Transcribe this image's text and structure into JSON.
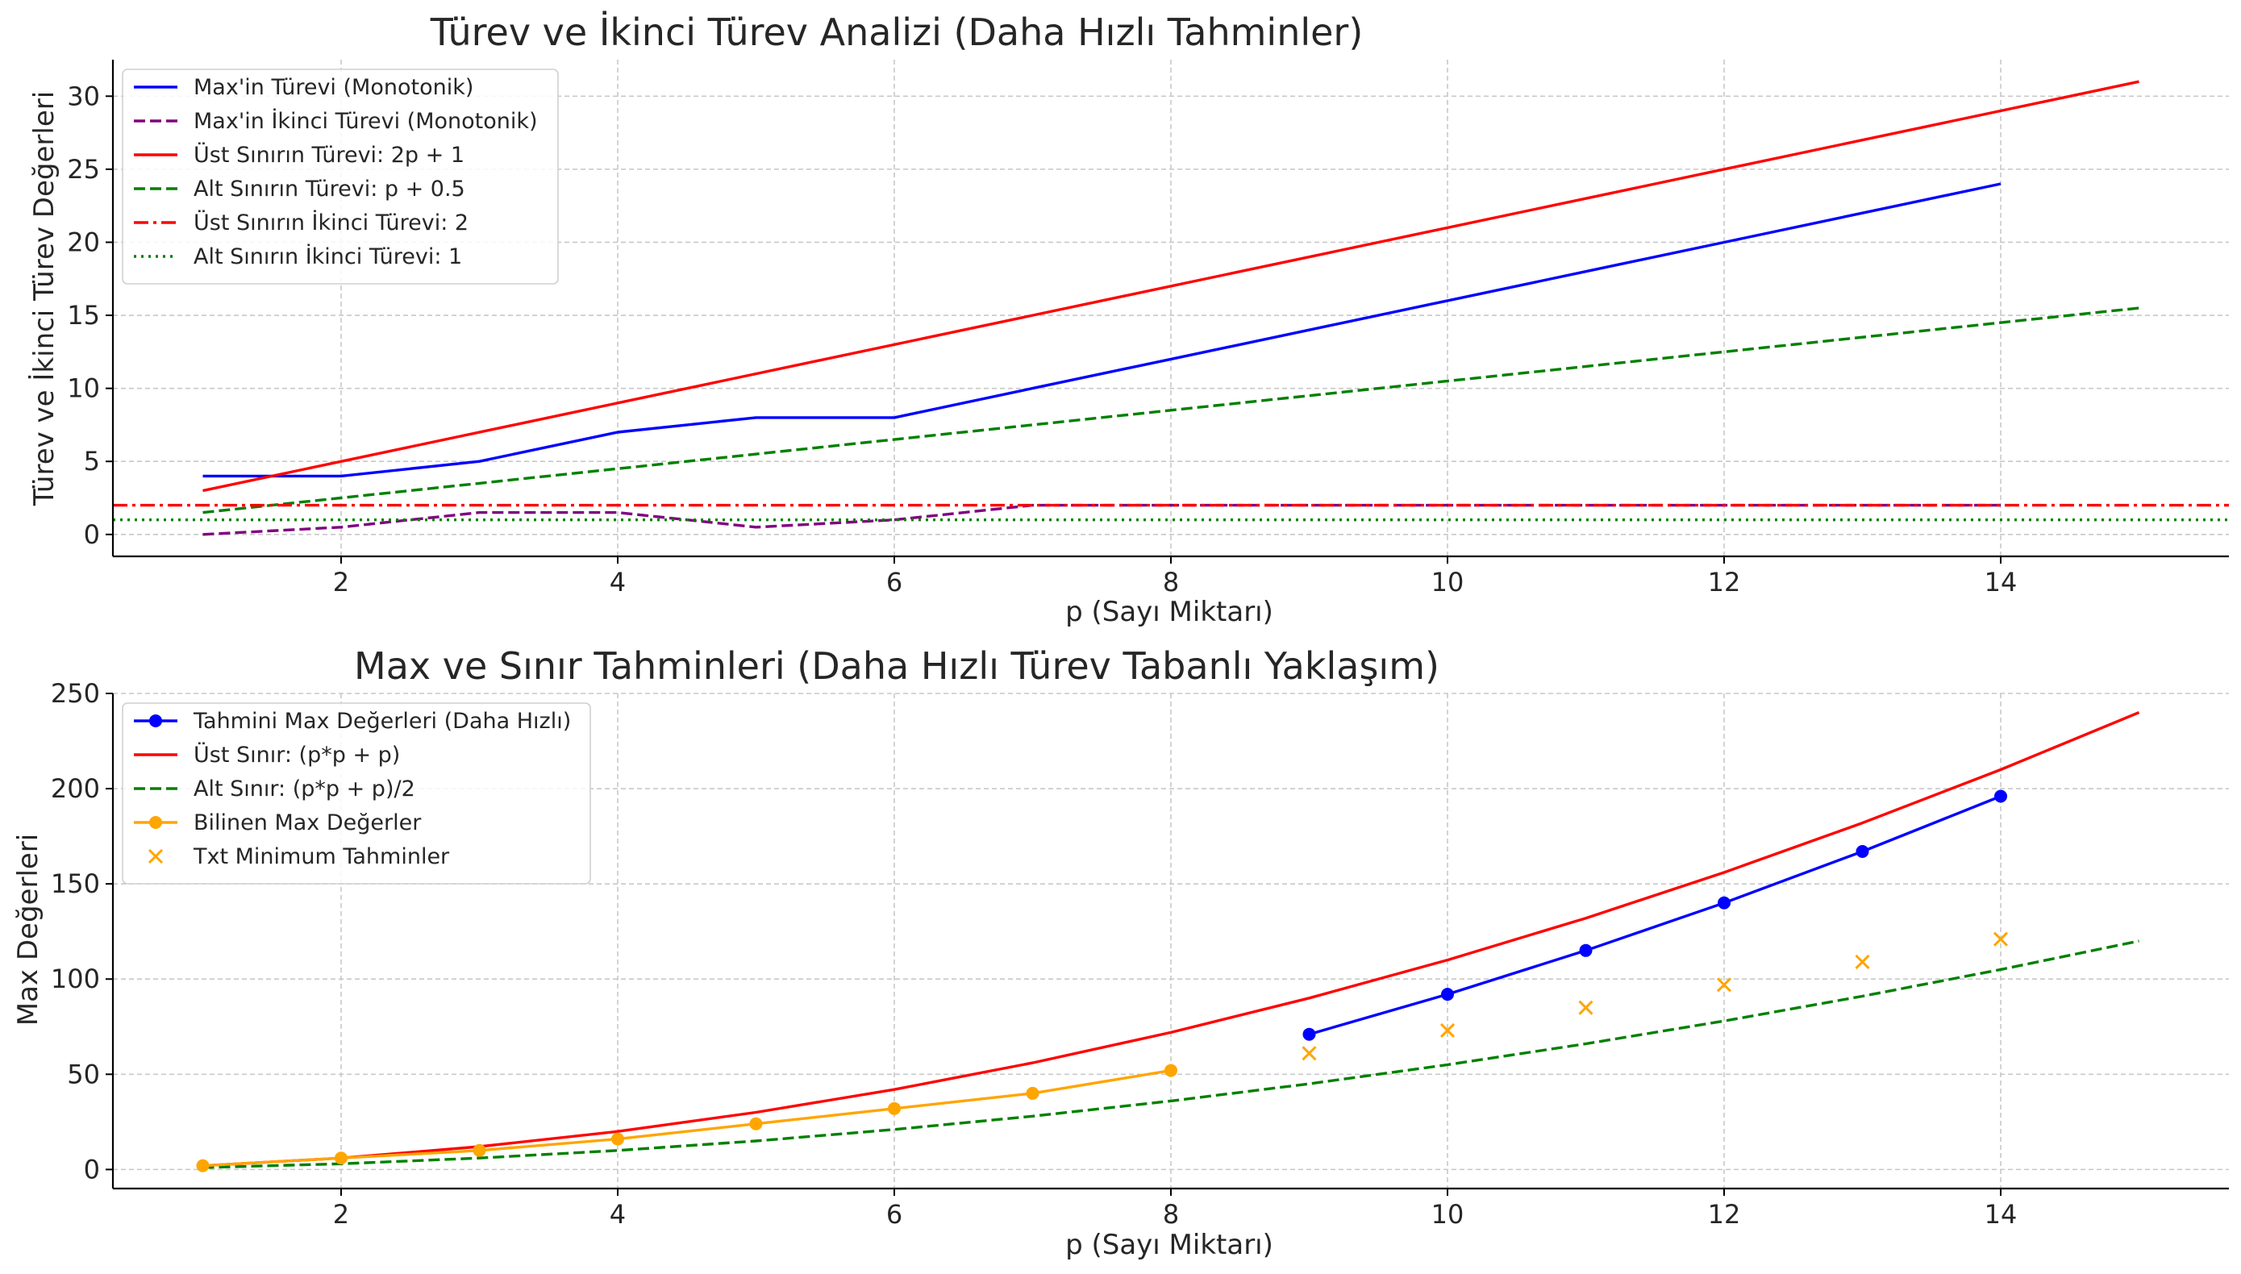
{
  "chart_data": [
    {
      "type": "line",
      "title": "Türev ve İkinci Türev Analizi (Daha Hızlı Tahminler)",
      "xlabel": "p (Sayı Miktarı)",
      "ylabel": "Türev ve İkinci Türev Değerleri",
      "xlim": [
        0.35,
        15.65
      ],
      "ylim": [
        -1.5,
        32.5
      ],
      "xticks": [
        2,
        4,
        6,
        8,
        10,
        12,
        14
      ],
      "yticks": [
        0,
        5,
        10,
        15,
        20,
        25,
        30
      ],
      "grid": true,
      "legend_position": "upper left",
      "series": [
        {
          "name": "Max'in Türevi (Monotonik)",
          "style": "solid",
          "color": "#0000ff",
          "x": [
            1,
            2,
            3,
            4,
            5,
            6,
            7,
            8,
            9,
            10,
            11,
            12,
            13,
            14
          ],
          "y": [
            4,
            4,
            5,
            7,
            8,
            8,
            10,
            12,
            14,
            16,
            18,
            20,
            22,
            24
          ]
        },
        {
          "name": "Max'in İkinci Türevi (Monotonik)",
          "style": "dashed",
          "color": "#800080",
          "x": [
            1,
            2,
            3,
            4,
            5,
            6,
            7,
            8,
            9,
            10,
            11,
            12,
            13,
            14
          ],
          "y": [
            0,
            0.5,
            1.5,
            1.5,
            0.5,
            1,
            2,
            2,
            2,
            2,
            2,
            2,
            2,
            2
          ]
        },
        {
          "name": "Üst Sınırın Türevi: 2p + 1",
          "style": "solid",
          "color": "#ff0000",
          "x": [
            1,
            15
          ],
          "y": [
            3,
            31
          ]
        },
        {
          "name": "Alt Sınırın Türevi: p + 0.5",
          "style": "dashed",
          "color": "#008000",
          "x": [
            1,
            15
          ],
          "y": [
            1.5,
            15.5
          ]
        },
        {
          "name": "Üst Sınırın İkinci Türevi: 2",
          "style": "dashdot",
          "color": "#ff0000",
          "x": [
            0.35,
            15.65
          ],
          "y": [
            2,
            2
          ]
        },
        {
          "name": "Alt Sınırın İkinci Türevi: 1",
          "style": "dotted",
          "color": "#008000",
          "x": [
            0.35,
            15.65
          ],
          "y": [
            1,
            1
          ]
        }
      ]
    },
    {
      "type": "line",
      "title": "Max ve Sınır Tahminleri (Daha Hızlı Türev Tabanlı Yaklaşım)",
      "xlabel": "p (Sayı Miktarı)",
      "ylabel": "Max Değerleri",
      "xlim": [
        0.35,
        15.65
      ],
      "ylim": [
        -10,
        250
      ],
      "xticks": [
        2,
        4,
        6,
        8,
        10,
        12,
        14
      ],
      "yticks": [
        0,
        50,
        100,
        150,
        200,
        250
      ],
      "grid": true,
      "legend_position": "upper left",
      "series": [
        {
          "name": "Tahmini Max Değerleri (Daha Hızlı)",
          "style": "solid-marker",
          "color": "#0000ff",
          "x": [
            9,
            10,
            11,
            12,
            13,
            14
          ],
          "y": [
            71,
            92,
            115,
            140,
            167,
            196
          ]
        },
        {
          "name": "Üst Sınır: (p*p + p)",
          "style": "solid",
          "color": "#ff0000",
          "x": [
            1,
            2,
            3,
            4,
            5,
            6,
            7,
            8,
            9,
            10,
            11,
            12,
            13,
            14,
            15
          ],
          "y": [
            2,
            6,
            12,
            20,
            30,
            42,
            56,
            72,
            90,
            110,
            132,
            156,
            182,
            210,
            240
          ]
        },
        {
          "name": "Alt Sınır: (p*p + p)/2",
          "style": "dashed",
          "color": "#008000",
          "x": [
            1,
            2,
            3,
            4,
            5,
            6,
            7,
            8,
            9,
            10,
            11,
            12,
            13,
            14,
            15
          ],
          "y": [
            1,
            3,
            6,
            10,
            15,
            21,
            28,
            36,
            45,
            55,
            66,
            78,
            91,
            105,
            120
          ]
        },
        {
          "name": "Bilinen Max Değerler",
          "style": "solid-marker",
          "color": "#ffa500",
          "x": [
            1,
            2,
            3,
            4,
            5,
            6,
            7,
            8
          ],
          "y": [
            2,
            6,
            10,
            16,
            24,
            32,
            40,
            52
          ]
        },
        {
          "name": "Txt Minimum Tahminler",
          "style": "x-marker",
          "color": "#ffa500",
          "x": [
            9,
            10,
            11,
            12,
            13,
            14
          ],
          "y": [
            61,
            73,
            85,
            97,
            109,
            121
          ]
        }
      ]
    }
  ]
}
